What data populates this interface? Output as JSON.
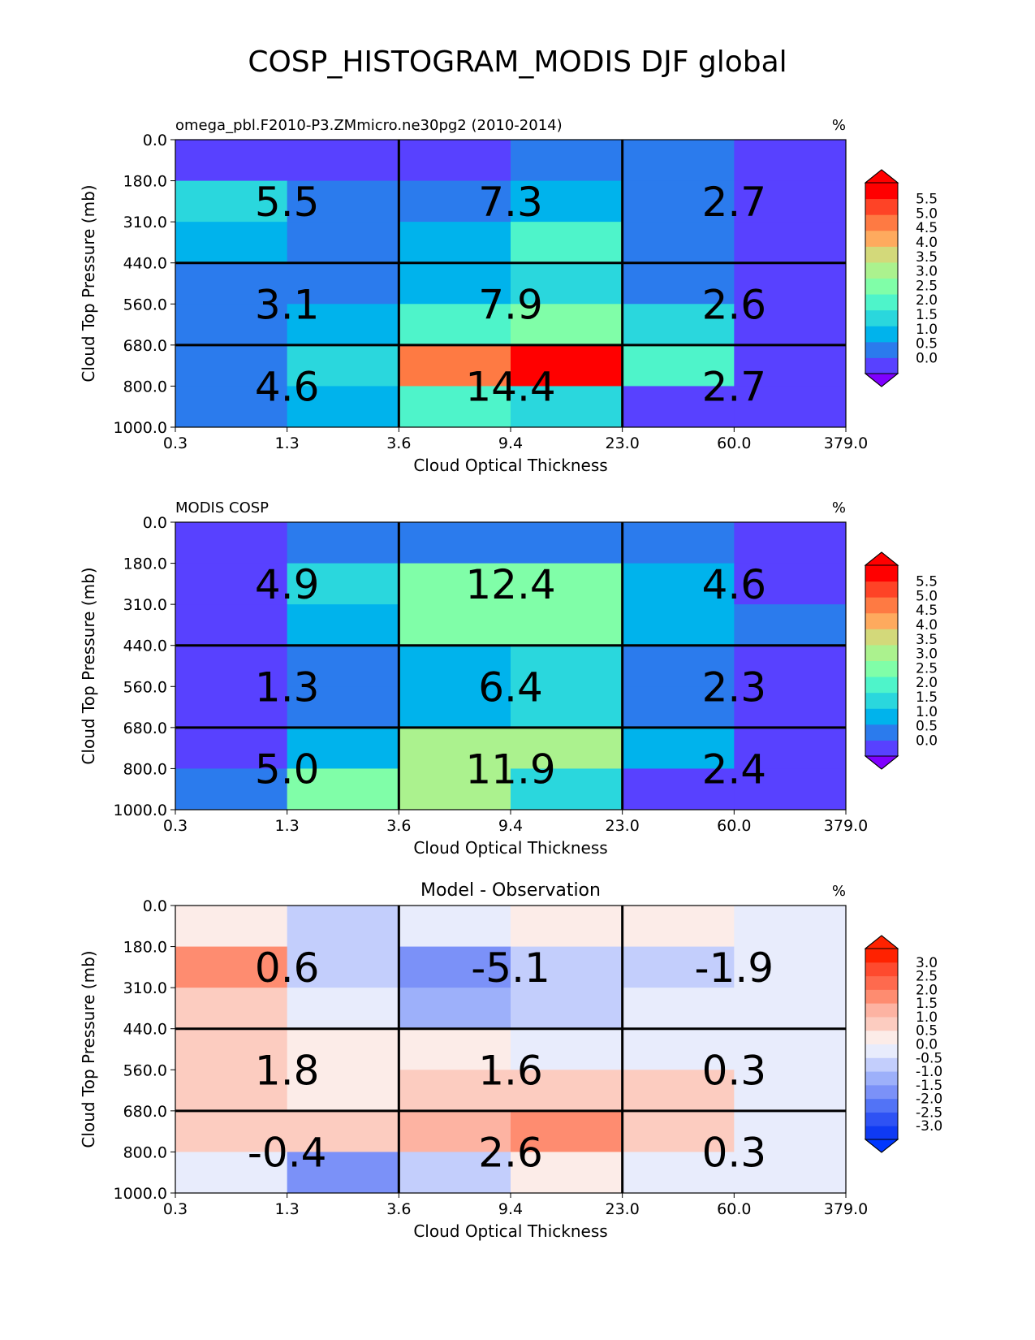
{
  "figure_title": "COSP_HISTOGRAM_MODIS DJF global",
  "chart_data": [
    {
      "type": "heatmap",
      "title_left": "omega_pbl.F2010-P3.ZMmicro.ne30pg2 (2010-2014)",
      "title_center": "",
      "units": "%",
      "xlabel": "Cloud Optical Thickness",
      "ylabel": "Cloud Top Pressure (mb)",
      "x_ticks": [
        "0.3",
        "1.3",
        "3.6",
        "9.4",
        "23.0",
        "60.0",
        "379.0"
      ],
      "y_ticks": [
        "0.0",
        "180.0",
        "310.0",
        "440.0",
        "560.0",
        "680.0",
        "800.0",
        "1000.0"
      ],
      "cells": [
        [
          0.1,
          0.1,
          0.1,
          0.9,
          0.9,
          0.1
        ],
        [
          1.8,
          0.9,
          0.9,
          1.3,
          0.9,
          0.1
        ],
        [
          1.3,
          0.9,
          1.3,
          2.2,
          0.9,
          0.1
        ],
        [
          0.9,
          0.9,
          1.3,
          1.8,
          0.9,
          0.1
        ],
        [
          0.9,
          1.3,
          2.2,
          2.8,
          1.8,
          0.1
        ],
        [
          0.9,
          1.8,
          4.8,
          6.0,
          2.2,
          0.1
        ],
        [
          0.9,
          1.3,
          2.2,
          1.8,
          0.1,
          0.1
        ]
      ],
      "group_values": [
        [
          "5.5",
          "7.3",
          "2.7"
        ],
        [
          "3.1",
          "7.9",
          "2.6"
        ],
        [
          "4.6",
          "14.4",
          "2.7"
        ]
      ],
      "colorbar": {
        "labels": [
          "5.5",
          "5.0",
          "4.5",
          "4.0",
          "3.5",
          "3.0",
          "2.5",
          "2.0",
          "1.5",
          "1.0",
          "0.5",
          "0.0"
        ],
        "colors": [
          "#ff0000",
          "#fe4326",
          "#fe7a43",
          "#feaa5e",
          "#d3d97a",
          "#abf28e",
          "#80fea8",
          "#4ef4ca",
          "#2ad7dd",
          "#00b3ec",
          "#2b7bed",
          "#5841ff"
        ],
        "under_color": "#7f00ff",
        "over_color": "#ff0000"
      }
    },
    {
      "type": "heatmap",
      "title_left": "MODIS COSP",
      "title_center": "",
      "units": "%",
      "xlabel": "Cloud Optical Thickness",
      "ylabel": "Cloud Top Pressure (mb)",
      "x_ticks": [
        "0.3",
        "1.3",
        "3.6",
        "9.4",
        "23.0",
        "60.0",
        "379.0"
      ],
      "y_ticks": [
        "0.0",
        "180.0",
        "310.0",
        "440.0",
        "560.0",
        "680.0",
        "800.0",
        "1000.0"
      ],
      "cells": [
        [
          0.1,
          0.9,
          0.9,
          0.9,
          0.9,
          0.1
        ],
        [
          0.1,
          1.8,
          2.8,
          2.8,
          1.3,
          0.1
        ],
        [
          0.1,
          1.3,
          2.8,
          2.8,
          1.3,
          0.9
        ],
        [
          0.1,
          0.9,
          1.3,
          1.8,
          0.9,
          0.1
        ],
        [
          0.1,
          0.9,
          1.3,
          1.8,
          0.9,
          0.1
        ],
        [
          0.1,
          1.3,
          3.3,
          3.3,
          1.3,
          0.1
        ],
        [
          0.9,
          2.8,
          3.0,
          1.8,
          0.1,
          0.1
        ]
      ],
      "group_values": [
        [
          "4.9",
          "12.4",
          "4.6"
        ],
        [
          "1.3",
          "6.4",
          "2.3"
        ],
        [
          "5.0",
          "11.9",
          "2.4"
        ]
      ],
      "colorbar": {
        "labels": [
          "5.5",
          "5.0",
          "4.5",
          "4.0",
          "3.5",
          "3.0",
          "2.5",
          "2.0",
          "1.5",
          "1.0",
          "0.5",
          "0.0"
        ],
        "colors": [
          "#ff0000",
          "#fe4326",
          "#fe7a43",
          "#feaa5e",
          "#d3d97a",
          "#abf28e",
          "#80fea8",
          "#4ef4ca",
          "#2ad7dd",
          "#00b3ec",
          "#2b7bed",
          "#5841ff"
        ],
        "under_color": "#7f00ff",
        "over_color": "#ff0000"
      }
    },
    {
      "type": "heatmap",
      "title_left": "",
      "title_center": "Model - Observation",
      "units": "%",
      "xlabel": "Cloud Optical Thickness",
      "ylabel": "Cloud Top Pressure (mb)",
      "x_ticks": [
        "0.3",
        "1.3",
        "3.6",
        "9.4",
        "23.0",
        "60.0",
        "379.0"
      ],
      "y_ticks": [
        "0.0",
        "180.0",
        "310.0",
        "440.0",
        "560.0",
        "680.0",
        "800.0",
        "1000.0"
      ],
      "cells": [
        [
          0.25,
          -0.75,
          -0.25,
          0.25,
          0.25,
          -0.25
        ],
        [
          1.75,
          -0.75,
          -1.75,
          -0.75,
          -0.75,
          -0.25
        ],
        [
          0.75,
          -0.25,
          -1.25,
          -0.75,
          -0.25,
          -0.25
        ],
        [
          0.75,
          0.25,
          0.25,
          -0.25,
          -0.25,
          -0.25
        ],
        [
          0.75,
          0.25,
          0.75,
          0.75,
          0.75,
          -0.25
        ],
        [
          0.75,
          0.75,
          1.25,
          1.75,
          0.75,
          -0.25
        ],
        [
          -0.25,
          -1.75,
          -0.75,
          0.25,
          -0.25,
          -0.25
        ]
      ],
      "group_values": [
        [
          "0.6",
          "-5.1",
          "-1.9"
        ],
        [
          "1.8",
          "1.6",
          "0.3"
        ],
        [
          "-0.4",
          "2.6",
          "0.3"
        ]
      ],
      "colorbar": {
        "labels": [
          "3.0",
          "2.5",
          "2.0",
          "1.5",
          "1.0",
          "0.5",
          "0.0",
          "-0.5",
          "-1.0",
          "-1.5",
          "-2.0",
          "-2.5",
          "-3.0"
        ],
        "colors": [
          "#ff2200",
          "#fe4a2e",
          "#fe6a4e",
          "#fe8c70",
          "#fdb3a2",
          "#fcccc0",
          "#fcece8",
          "#e8ecfc",
          "#c3cefc",
          "#9db0fa",
          "#7b91f8",
          "#5273f6",
          "#2e52f4",
          "#0f3af3"
        ],
        "under_color": "#0037ff",
        "over_color": "#ff2200"
      }
    }
  ]
}
